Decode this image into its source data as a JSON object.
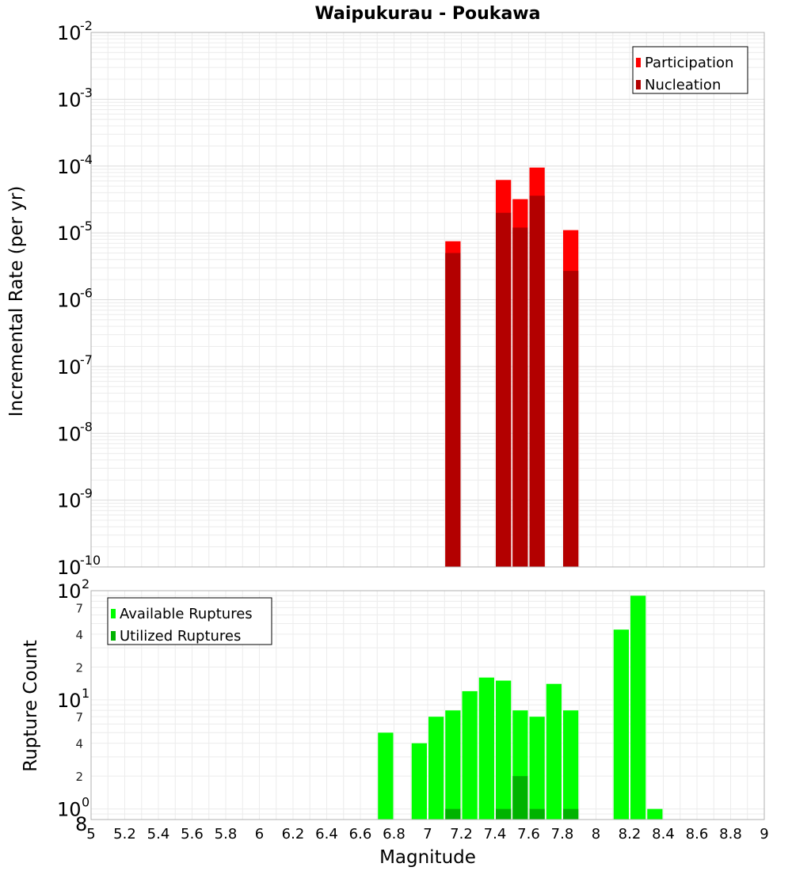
{
  "chart_data": [
    {
      "type": "bar",
      "title": "Waipukurau - Poukawa",
      "xlabel": "",
      "ylabel": "Incremental Rate (per yr)",
      "xlim": [
        5,
        9
      ],
      "ylim": [
        1e-10,
        0.01
      ],
      "yscale": "log",
      "bar_width": 0.1,
      "grid": true,
      "legend_position": "top-right",
      "legend": [
        "Participation",
        "Nucleation"
      ],
      "colors": {
        "participation": "#ff0000",
        "nucleation": "#b30000"
      },
      "series": [
        {
          "name": "Participation",
          "x": [
            7.15,
            7.45,
            7.55,
            7.65,
            7.85
          ],
          "values": [
            7.5e-06,
            6.2e-05,
            3.2e-05,
            9.5e-05,
            1.1e-05
          ]
        },
        {
          "name": "Nucleation",
          "x": [
            7.15,
            7.45,
            7.55,
            7.65,
            7.85
          ],
          "values": [
            5e-06,
            2e-05,
            1.2e-05,
            3.6e-05,
            2.7e-06
          ]
        }
      ],
      "y_ticks": [
        {
          "base": "10",
          "exp": "-2"
        },
        {
          "base": "10",
          "exp": "-3"
        },
        {
          "base": "10",
          "exp": "-4"
        },
        {
          "base": "10",
          "exp": "-5"
        },
        {
          "base": "10",
          "exp": "-6"
        },
        {
          "base": "10",
          "exp": "-7"
        },
        {
          "base": "10",
          "exp": "-8"
        },
        {
          "base": "10",
          "exp": "-9"
        },
        {
          "base": "10",
          "exp": "-10"
        }
      ]
    },
    {
      "type": "bar",
      "title": "",
      "xlabel": "Magnitude",
      "ylabel": "Rupture Count",
      "xlim": [
        5,
        9
      ],
      "ylim": [
        0.8,
        100
      ],
      "yscale": "log",
      "bar_width": 0.1,
      "grid": true,
      "legend_position": "top-left",
      "legend": [
        "Available Ruptures",
        "Utilized Ruptures"
      ],
      "colors": {
        "available": "#00ff00",
        "utilized": "#00b300"
      },
      "series": [
        {
          "name": "Available Ruptures",
          "x": [
            6.75,
            6.95,
            7.05,
            7.15,
            7.25,
            7.35,
            7.45,
            7.55,
            7.65,
            7.75,
            7.85,
            8.15,
            8.25,
            8.35
          ],
          "values": [
            5,
            4,
            7,
            8,
            12,
            16,
            15,
            8,
            7,
            14,
            8,
            44,
            90,
            1
          ]
        },
        {
          "name": "Utilized Ruptures",
          "x": [
            7.15,
            7.45,
            7.55,
            7.65,
            7.85
          ],
          "values": [
            1,
            1,
            2,
            1,
            1
          ]
        }
      ],
      "y_ticks": [
        {
          "value": "10",
          "exp": "2"
        },
        {
          "value": "7"
        },
        {
          "value": "4"
        },
        {
          "value": "2"
        },
        {
          "value": "10",
          "exp": "1"
        },
        {
          "value": "7"
        },
        {
          "value": "4"
        },
        {
          "value": "2"
        },
        {
          "value": "10",
          "exp": "0"
        },
        {
          "value": "8"
        }
      ],
      "x_ticks": [
        "5",
        "5.2",
        "5.4",
        "5.6",
        "5.8",
        "6",
        "6.2",
        "6.4",
        "6.6",
        "6.8",
        "7",
        "7.2",
        "7.4",
        "7.6",
        "7.8",
        "8",
        "8.2",
        "8.4",
        "8.6",
        "8.8",
        "9"
      ]
    }
  ]
}
